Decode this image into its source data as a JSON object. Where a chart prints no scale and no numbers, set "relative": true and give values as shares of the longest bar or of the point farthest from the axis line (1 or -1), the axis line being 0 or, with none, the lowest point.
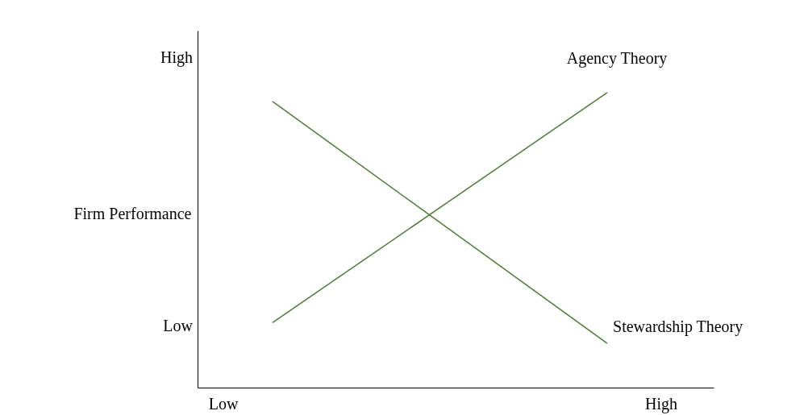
{
  "chart_data": {
    "type": "line",
    "ylabel": "Firm Performance",
    "relative": true,
    "categories": [
      null,
      null
    ],
    "annotations": [
      "High",
      "Low",
      "Low",
      "High"
    ],
    "series": [
      {
        "name": "Agency Theory",
        "color": "#4f7a3a",
        "values": [
          0.22,
          1
        ]
      },
      {
        "name": "Stewardship Theory",
        "color": "#4f7a3a",
        "values": [
          0.97,
          0.15
        ]
      }
    ],
    "grid": false,
    "legend": false,
    "marker": "none",
    "line_style": "solid"
  }
}
